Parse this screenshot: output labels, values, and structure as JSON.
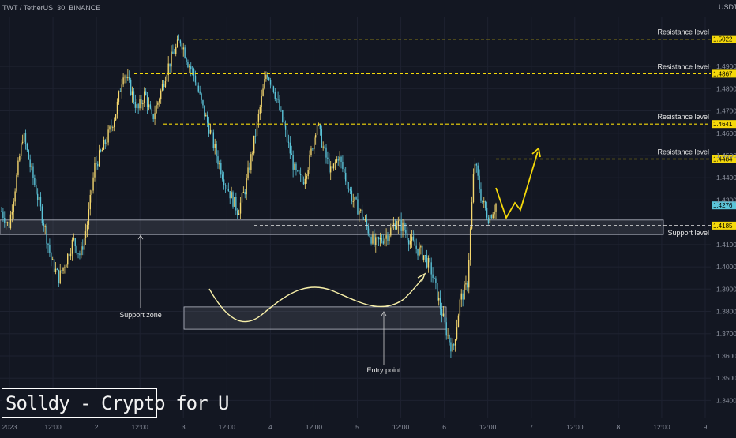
{
  "header": {
    "title": "TWT / TetherUS, 30, BINANCE",
    "currency": "USDT"
  },
  "watermark": "Solldy - Crypto for U",
  "chart_data": {
    "type": "candlestick",
    "symbol": "TWT / TetherUS",
    "interval": "30",
    "exchange": "BINANCE",
    "ylim": [
      1.332,
      1.512
    ],
    "y_ticks": [
      "1.4900",
      "1.4800",
      "1.4700",
      "1.4600",
      "1.4500",
      "1.4400",
      "1.4300",
      "1.4100",
      "1.4000",
      "1.3900",
      "1.3800",
      "1.3700",
      "1.3600",
      "1.3500",
      "1.3400"
    ],
    "x_ticks": [
      "2023",
      "12:00",
      "2",
      "12:00",
      "3",
      "12:00",
      "4",
      "12:00",
      "5",
      "12:00",
      "6",
      "12:00",
      "7",
      "12:00",
      "8",
      "12:00",
      "9"
    ],
    "levels": [
      {
        "name": "Resistance level",
        "value": 1.5022,
        "label": "1.5022"
      },
      {
        "name": "Resistance level",
        "value": 1.4867,
        "label": "1.4867"
      },
      {
        "name": "Resistance level",
        "value": 1.4641,
        "label": "1.4641"
      },
      {
        "name": "Resistance level",
        "value": 1.4484,
        "label": "1.4484"
      },
      {
        "name": "Support level",
        "value": 1.4185,
        "label": "1.4185"
      }
    ],
    "last_price": {
      "value": 1.4276,
      "label": "1.4276"
    },
    "support_zone": {
      "label": "Support zone",
      "from": 1.4145,
      "to": 1.421
    },
    "entry_box": {
      "label": "Entry point",
      "from": 1.372,
      "to": 1.382
    },
    "price_path": [
      1.425,
      1.418,
      1.438,
      1.46,
      1.445,
      1.432,
      1.418,
      1.402,
      1.395,
      1.403,
      1.412,
      1.405,
      1.42,
      1.445,
      1.452,
      1.46,
      1.47,
      1.488,
      1.48,
      1.47,
      1.478,
      1.466,
      1.476,
      1.488,
      1.496,
      1.502,
      1.492,
      1.485,
      1.472,
      1.462,
      1.45,
      1.44,
      1.432,
      1.425,
      1.435,
      1.452,
      1.47,
      1.488,
      1.48,
      1.468,
      1.455,
      1.442,
      1.438,
      1.448,
      1.465,
      1.452,
      1.442,
      1.45,
      1.44,
      1.43,
      1.425,
      1.418,
      1.41,
      1.412,
      1.415,
      1.42,
      1.418,
      1.412,
      1.408,
      1.405,
      1.398,
      1.385,
      1.372,
      1.362,
      1.385,
      1.392,
      1.448,
      1.43,
      1.422,
      1.428
    ]
  }
}
